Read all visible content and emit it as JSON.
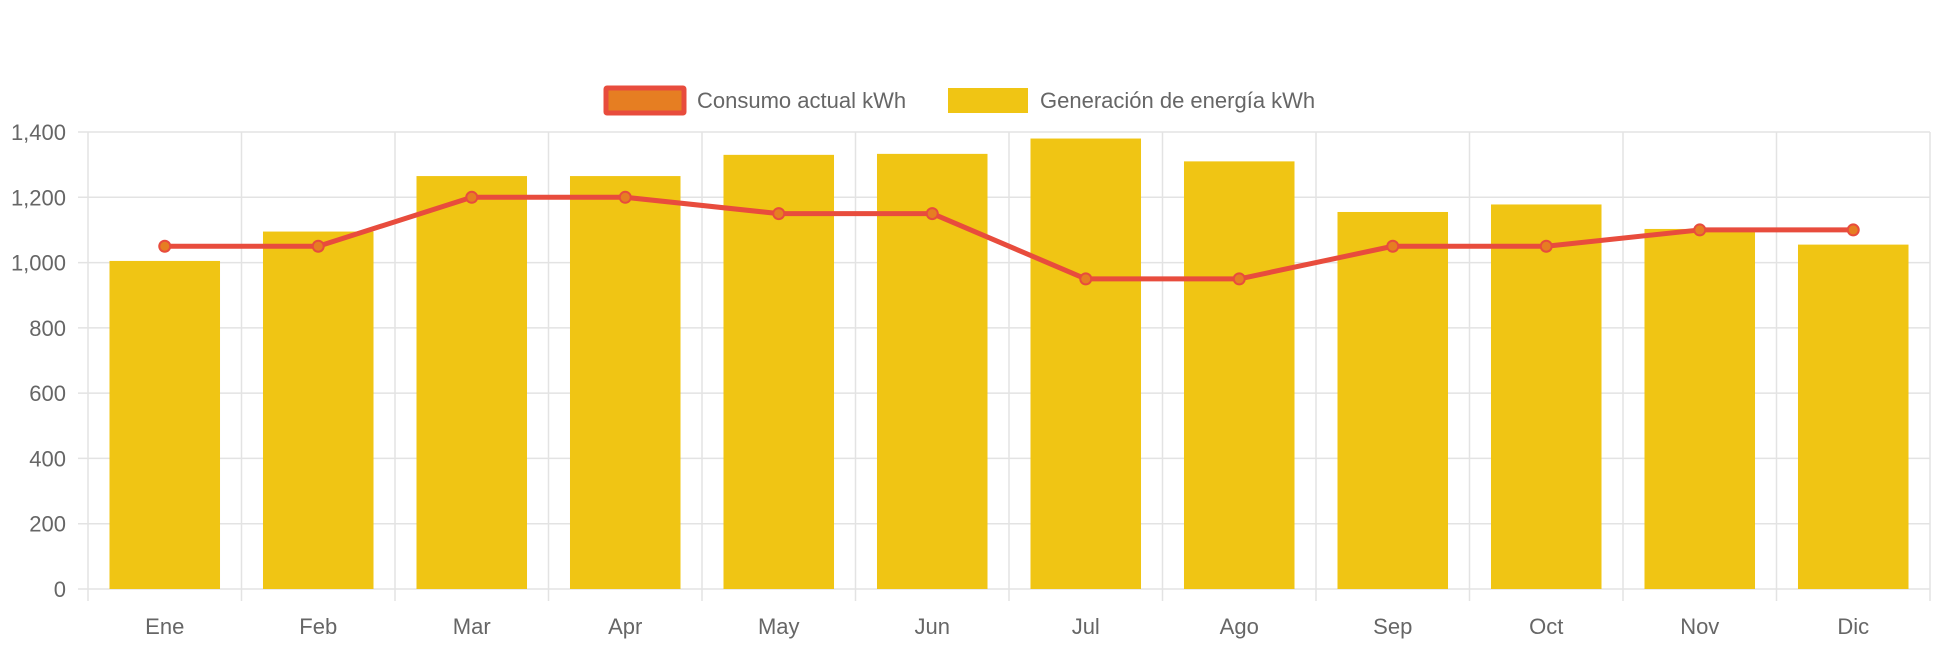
{
  "chart_data": {
    "type": "bar",
    "categories": [
      "Ene",
      "Feb",
      "Mar",
      "Apr",
      "May",
      "Jun",
      "Jul",
      "Ago",
      "Sep",
      "Oct",
      "Nov",
      "Dic"
    ],
    "series": [
      {
        "name": "Generación de energía kWh",
        "type": "bar",
        "values": [
          1005,
          1095,
          1265,
          1265,
          1330,
          1333,
          1380,
          1310,
          1155,
          1178,
          1103,
          1055
        ]
      },
      {
        "name": "Consumo actual kWh",
        "type": "line",
        "values": [
          1050,
          1050,
          1200,
          1200,
          1150,
          1150,
          950,
          950,
          1050,
          1050,
          1100,
          1100
        ]
      }
    ],
    "y_ticks": [
      "0",
      "200",
      "400",
      "600",
      "800",
      "1,000",
      "1,200",
      "1,400"
    ],
    "ylim": [
      0,
      1400
    ],
    "grid": true,
    "legend_position": "top-center",
    "colors": {
      "bar_fill": "#f0c514",
      "line_stroke": "#e84c3d",
      "point_fill": "#e67e22",
      "grid": "#e3e3e3",
      "axis_text": "#666666"
    }
  }
}
